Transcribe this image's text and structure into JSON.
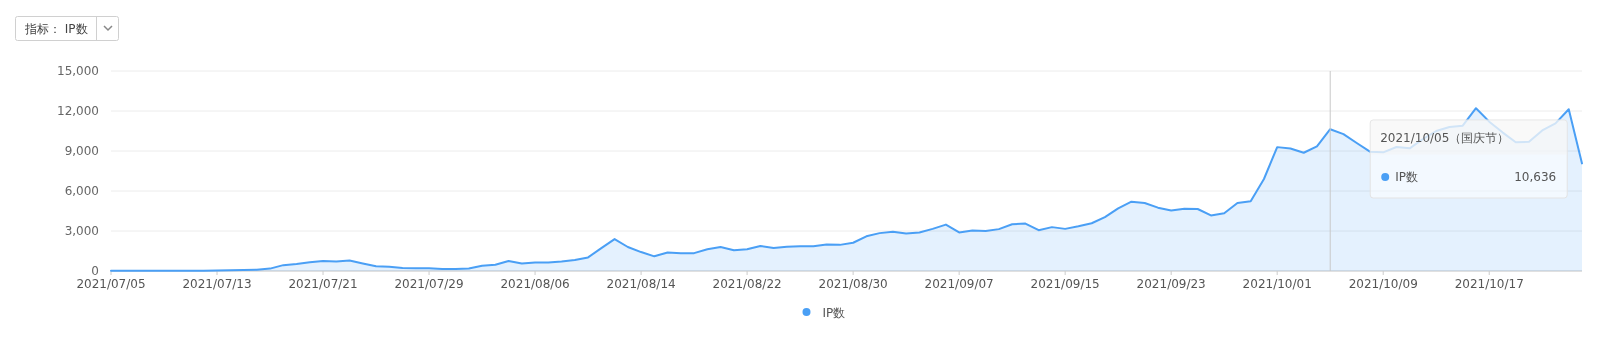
{
  "chart_data": {
    "type": "area",
    "x": [
      "2021-07-05",
      "2021-07-06",
      "2021-07-07",
      "2021-07-08",
      "2021-07-09",
      "2021-07-10",
      "2021-07-11",
      "2021-07-12",
      "2021-07-13",
      "2021-07-14",
      "2021-07-15",
      "2021-07-16",
      "2021-07-17",
      "2021-07-18",
      "2021-07-19",
      "2021-07-20",
      "2021-07-21",
      "2021-07-22",
      "2021-07-23",
      "2021-07-24",
      "2021-07-25",
      "2021-07-26",
      "2021-07-27",
      "2021-07-28",
      "2021-07-29",
      "2021-07-30",
      "2021-07-31",
      "2021-08-01",
      "2021-08-02",
      "2021-08-03",
      "2021-08-04",
      "2021-08-05",
      "2021-08-06",
      "2021-08-07",
      "2021-08-08",
      "2021-08-09",
      "2021-08-10",
      "2021-08-11",
      "2021-08-12",
      "2021-08-13",
      "2021-08-14",
      "2021-08-15",
      "2021-08-16",
      "2021-08-17",
      "2021-08-18",
      "2021-08-19",
      "2021-08-20",
      "2021-08-21",
      "2021-08-22",
      "2021-08-23",
      "2021-08-24",
      "2021-08-25",
      "2021-08-26",
      "2021-08-27",
      "2021-08-28",
      "2021-08-29",
      "2021-08-30",
      "2021-08-31",
      "2021-09-01",
      "2021-09-02",
      "2021-09-03",
      "2021-09-04",
      "2021-09-05",
      "2021-09-06",
      "2021-09-07",
      "2021-09-08",
      "2021-09-09",
      "2021-09-10",
      "2021-09-11",
      "2021-09-12",
      "2021-09-13",
      "2021-09-14",
      "2021-09-15",
      "2021-09-16",
      "2021-09-17",
      "2021-09-18",
      "2021-09-19",
      "2021-09-20",
      "2021-09-21",
      "2021-09-22",
      "2021-09-23",
      "2021-09-24",
      "2021-09-25",
      "2021-09-26",
      "2021-09-27",
      "2021-09-28",
      "2021-09-29",
      "2021-09-30",
      "2021-10-01",
      "2021-10-02",
      "2021-10-03",
      "2021-10-04",
      "2021-10-05",
      "2021-10-06",
      "2021-10-07",
      "2021-10-08",
      "2021-10-09",
      "2021-10-10",
      "2021-10-11",
      "2021-10-12",
      "2021-10-13",
      "2021-10-14",
      "2021-10-15",
      "2021-10-16",
      "2021-10-17",
      "2021-10-18",
      "2021-10-19",
      "2021-10-20",
      "2021-10-21",
      "2021-10-22",
      "2021-10-23",
      "2021-10-24"
    ],
    "series": [
      {
        "name": "IP数",
        "color": "#4a9ff5",
        "values": [
          10,
          10,
          10,
          10,
          10,
          10,
          20,
          20,
          30,
          50,
          80,
          100,
          180,
          440,
          520,
          650,
          750,
          720,
          780,
          570,
          360,
          310,
          230,
          210,
          200,
          150,
          150,
          180,
          390,
          470,
          750,
          560,
          640,
          640,
          720,
          830,
          1020,
          1720,
          2390,
          1800,
          1420,
          1100,
          1390,
          1340,
          1340,
          1630,
          1800,
          1550,
          1630,
          1880,
          1720,
          1820,
          1850,
          1850,
          1980,
          1960,
          2120,
          2600,
          2840,
          2950,
          2810,
          2890,
          3160,
          3480,
          2890,
          3030,
          3000,
          3140,
          3510,
          3560,
          3060,
          3290,
          3160,
          3350,
          3580,
          4040,
          4700,
          5200,
          5100,
          4750,
          4540,
          4670,
          4650,
          4170,
          4330,
          5100,
          5230,
          6900,
          9290,
          9190,
          8870,
          9350,
          10636,
          10270,
          9600,
          8950,
          8900,
          9300,
          9200,
          9900,
          10500,
          10800,
          10900,
          12210,
          11200,
          10400,
          9660,
          9690,
          10540,
          11070,
          12130,
          8070
        ]
      }
    ],
    "xlim": [
      "2021-07-05",
      "2021-10-24"
    ],
    "xticks": [
      {
        "value": "2021-07-05",
        "label": "2021/07/05"
      },
      {
        "value": "2021-07-13",
        "label": "2021/07/13"
      },
      {
        "value": "2021-07-21",
        "label": "2021/07/21"
      },
      {
        "value": "2021-07-29",
        "label": "2021/07/29"
      },
      {
        "value": "2021-08-06",
        "label": "2021/08/06"
      },
      {
        "value": "2021-08-14",
        "label": "2021/08/14"
      },
      {
        "value": "2021-08-22",
        "label": "2021/08/22"
      },
      {
        "value": "2021-08-30",
        "label": "2021/08/30"
      },
      {
        "value": "2021-09-07",
        "label": "2021/09/07"
      },
      {
        "value": "2021-09-15",
        "label": "2021/09/15"
      },
      {
        "value": "2021-09-23",
        "label": "2021/09/23"
      },
      {
        "value": "2021-10-01",
        "label": "2021/10/01"
      },
      {
        "value": "2021-10-09",
        "label": "2021/10/09"
      },
      {
        "value": "2021-10-17",
        "label": "2021/10/17"
      }
    ],
    "ylim": [
      0,
      15000
    ],
    "yticks": [
      {
        "value": 0,
        "label": "0"
      },
      {
        "value": 3000,
        "label": "3,000"
      },
      {
        "value": 6000,
        "label": "6,000"
      },
      {
        "value": 9000,
        "label": "9,000"
      },
      {
        "value": 12000,
        "label": "12,000"
      },
      {
        "value": 15000,
        "label": "15,000"
      }
    ],
    "grid": "y",
    "legend": "bottom",
    "ref_lines": [
      {
        "axis": "x",
        "value": "2021-10-05",
        "color": "#c8c8c8"
      }
    ],
    "annotations": [
      "指标： IP数",
      "2021/10/05（国庆节）",
      "10,636"
    ]
  }
}
